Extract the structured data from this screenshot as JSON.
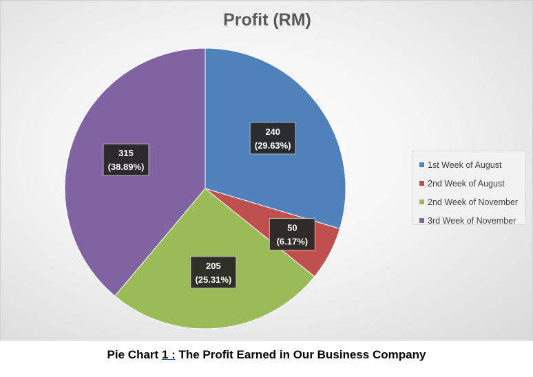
{
  "chart_data": {
    "type": "pie",
    "title": "Profit (RM)",
    "categories": [
      "1st Week of August",
      "2nd Week of August",
      "2nd Week of November",
      "3rd Week of November"
    ],
    "values": [
      240,
      50,
      205,
      315
    ],
    "percent_labels": [
      "(29.63%)",
      "(6.17%)",
      "(25.31%)",
      "(38.89%)"
    ],
    "colors": [
      "#4f81bd",
      "#c0504d",
      "#9bbb59",
      "#8064a2"
    ],
    "legend_position": "right"
  },
  "caption": {
    "prefix": "Pie Chart ",
    "number": "1 :",
    "text": " The Profit Earned in Our Business Company"
  }
}
